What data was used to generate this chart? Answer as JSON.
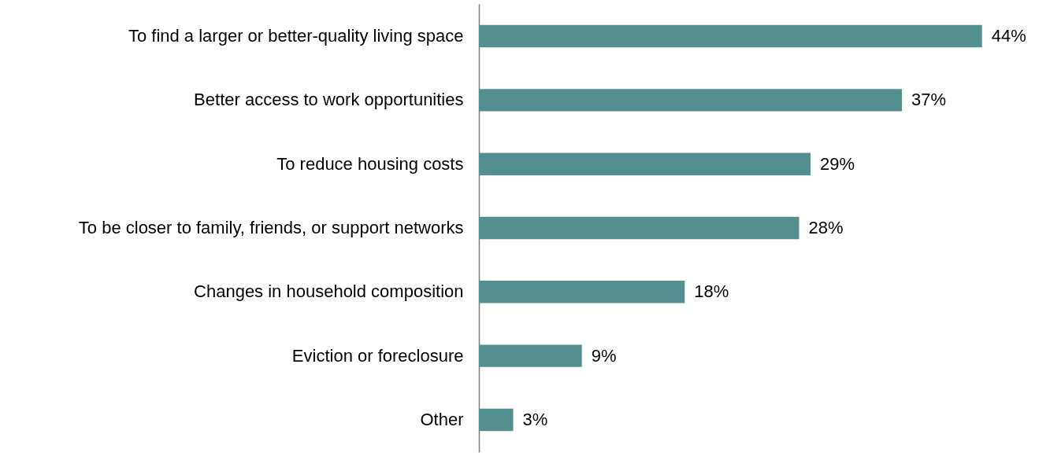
{
  "chart_data": {
    "type": "bar",
    "orientation": "horizontal",
    "categories": [
      "To find a larger or better-quality living space",
      "Better access to work opportunities",
      "To reduce housing costs",
      "To be closer to family, friends, or support networks",
      "Changes in household composition",
      "Eviction or foreclosure",
      "Other"
    ],
    "values": [
      44,
      37,
      29,
      28,
      18,
      9,
      3
    ],
    "value_labels": [
      "44%",
      "37%",
      "29%",
      "28%",
      "18%",
      "9%",
      "3%"
    ],
    "color": "#538f8f"
  }
}
